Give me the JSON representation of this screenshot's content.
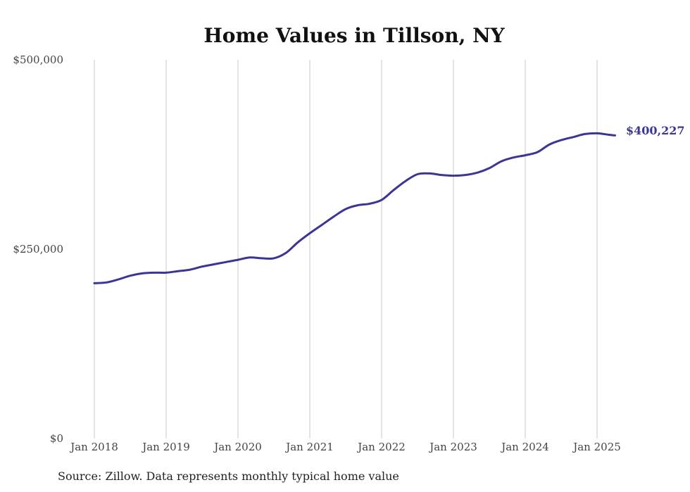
{
  "chart_data": {
    "type": "line",
    "title": "Home Values in Tillson, NY",
    "xlabel": "",
    "ylabel": "",
    "ylim": [
      0,
      500000
    ],
    "y_ticks": [
      0,
      250000,
      500000
    ],
    "y_tick_labels": [
      "$0",
      "$250,000",
      "$500,000"
    ],
    "x_ticks": [
      "2018-01",
      "2019-01",
      "2020-01",
      "2021-01",
      "2022-01",
      "2023-01",
      "2024-01",
      "2025-01"
    ],
    "x_tick_labels": [
      "Jan 2018",
      "Jan 2019",
      "Jan 2020",
      "Jan 2021",
      "Jan 2022",
      "Jan 2023",
      "Jan 2024",
      "Jan 2025"
    ],
    "grid": "vertical",
    "series": [
      {
        "color": "#3b3596",
        "points": [
          [
            "2018-01",
            205000
          ],
          [
            "2018-03",
            206000
          ],
          [
            "2018-05",
            210000
          ],
          [
            "2018-07",
            215000
          ],
          [
            "2018-09",
            218000
          ],
          [
            "2018-11",
            219000
          ],
          [
            "2019-01",
            219000
          ],
          [
            "2019-03",
            221000
          ],
          [
            "2019-05",
            223000
          ],
          [
            "2019-07",
            227000
          ],
          [
            "2019-09",
            230000
          ],
          [
            "2019-11",
            233000
          ],
          [
            "2020-01",
            236000
          ],
          [
            "2020-03",
            239000
          ],
          [
            "2020-05",
            238000
          ],
          [
            "2020-07",
            238000
          ],
          [
            "2020-09",
            245000
          ],
          [
            "2020-11",
            259000
          ],
          [
            "2021-01",
            271000
          ],
          [
            "2021-03",
            282000
          ],
          [
            "2021-05",
            293000
          ],
          [
            "2021-07",
            303000
          ],
          [
            "2021-09",
            308000
          ],
          [
            "2021-11",
            310000
          ],
          [
            "2022-01",
            315000
          ],
          [
            "2022-03",
            328000
          ],
          [
            "2022-05",
            340000
          ],
          [
            "2022-07",
            349000
          ],
          [
            "2022-09",
            350000
          ],
          [
            "2022-11",
            348000
          ],
          [
            "2023-01",
            347000
          ],
          [
            "2023-03",
            348000
          ],
          [
            "2023-05",
            351000
          ],
          [
            "2023-07",
            357000
          ],
          [
            "2023-09",
            366000
          ],
          [
            "2023-11",
            371000
          ],
          [
            "2024-01",
            374000
          ],
          [
            "2024-03",
            378000
          ],
          [
            "2024-05",
            388000
          ],
          [
            "2024-07",
            394000
          ],
          [
            "2024-09",
            398000
          ],
          [
            "2024-11",
            402000
          ],
          [
            "2025-01",
            403000
          ],
          [
            "2025-03",
            401000
          ],
          [
            "2025-04",
            400227
          ]
        ]
      }
    ],
    "end_label": "$400,227",
    "source_note": "Source: Zillow. Data represents monthly typical home value"
  }
}
